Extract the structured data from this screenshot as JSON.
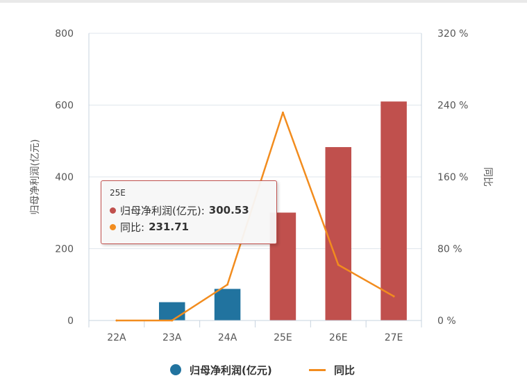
{
  "chart_data": {
    "type": "bar",
    "categories": [
      "22A",
      "23A",
      "24A",
      "25E",
      "26E",
      "27E"
    ],
    "series": [
      {
        "name": "归母净利润(亿元)",
        "type": "bar",
        "axis": "left",
        "values": [
          0,
          51,
          88,
          300.53,
          483,
          610
        ],
        "colors": [
          "#21739f",
          "#21739f",
          "#21739f",
          "#c0504d",
          "#c0504d",
          "#c0504d"
        ]
      },
      {
        "name": "同比",
        "type": "line",
        "axis": "right",
        "values": [
          0,
          0,
          40,
          231.71,
          62,
          27
        ],
        "color": "#f28c1e"
      }
    ],
    "ylabel": "归母净利润(亿元)",
    "y2label": "同比",
    "ylim": [
      0,
      800
    ],
    "yticks": [
      "0",
      "200",
      "400",
      "600",
      "800"
    ],
    "y2lim": [
      0,
      320
    ],
    "y2ticks": [
      "0 %",
      "80 %",
      "160 %",
      "240 %",
      "320 %"
    ],
    "grid": true,
    "legend": "bottom-center"
  },
  "tooltip": {
    "title": "25E",
    "rows": [
      {
        "label": "归母净利润(亿元):",
        "value": "300.53",
        "color": "#c0504d"
      },
      {
        "label": "同比:",
        "value": "231.71",
        "color": "#f28c1e"
      }
    ]
  },
  "legend": {
    "items": [
      {
        "label": "归母净利润(亿元)",
        "color": "#21739f"
      },
      {
        "label": "同比",
        "color": "#f28c1e"
      }
    ]
  }
}
